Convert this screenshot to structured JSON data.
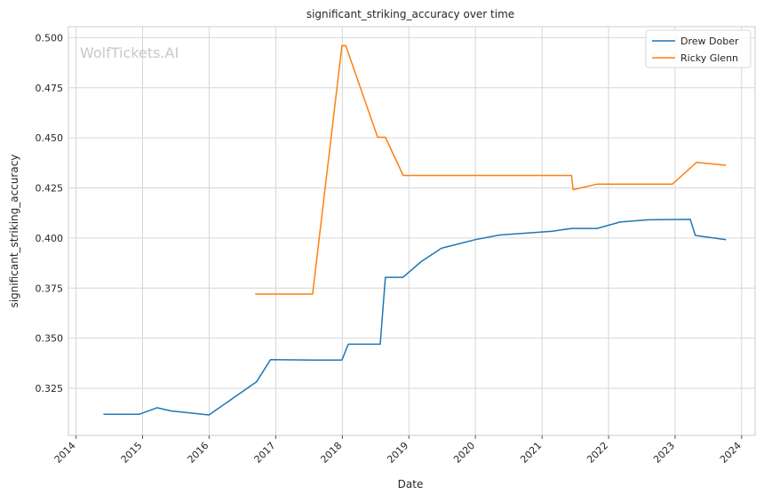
{
  "watermark": "WolfTickets.AI",
  "chart_data": {
    "type": "line",
    "title": "significant_striking_accuracy over time",
    "xlabel": "Date",
    "ylabel": "significant_striking_accuracy",
    "xlim": [
      "2013-11-20",
      "2024-03-15"
    ],
    "ylim": [
      0.3015,
      0.5055
    ],
    "x_ticks": [
      "2014",
      "2015",
      "2016",
      "2017",
      "2018",
      "2019",
      "2020",
      "2021",
      "2022",
      "2023",
      "2024"
    ],
    "y_ticks": [
      "0.325",
      "0.350",
      "0.375",
      "0.400",
      "0.425",
      "0.450",
      "0.475",
      "0.500"
    ],
    "grid": true,
    "legend_position": "top-right",
    "series": [
      {
        "name": "Drew Dober",
        "color": "#1f77b4",
        "x": [
          "2014-05-31",
          "2014-12-13",
          "2015-03-21",
          "2015-06-06",
          "2015-12-31",
          "2016-09-17",
          "2016-12-03",
          "2017-07-22",
          "2017-12-30",
          "2018-02-03",
          "2018-07-28",
          "2018-08-25",
          "2018-11-30",
          "2019-03-09",
          "2019-06-29",
          "2020-01-01",
          "2020-05-13",
          "2021-02-27",
          "2021-06-12",
          "2021-10-30",
          "2022-03-05",
          "2022-08-06",
          "2023-03-25",
          "2023-04-22",
          "2023-10-07"
        ],
        "y": [
          0.312,
          0.312,
          0.3153,
          0.3137,
          0.3117,
          0.3282,
          0.3393,
          0.3391,
          0.3391,
          0.347,
          0.347,
          0.3804,
          0.3804,
          0.3882,
          0.3949,
          0.3992,
          0.4015,
          0.4034,
          0.4048,
          0.4048,
          0.408,
          0.4091,
          0.4093,
          0.4013,
          0.3992
        ]
      },
      {
        "name": "Ricky Glenn",
        "color": "#ff7f0e",
        "x": [
          "2016-09-10",
          "2017-07-22",
          "2017-12-30",
          "2018-01-20",
          "2018-07-14",
          "2018-08-25",
          "2018-12-01",
          "2019-07-01",
          "2020-07-01",
          "2021-06-12",
          "2021-06-20",
          "2021-10-30",
          "2022-06-01",
          "2022-12-17",
          "2023-04-29",
          "2023-10-07"
        ],
        "y": [
          0.372,
          0.372,
          0.496,
          0.496,
          0.4503,
          0.4503,
          0.4312,
          0.4312,
          0.4312,
          0.4312,
          0.4241,
          0.4269,
          0.4269,
          0.4269,
          0.4378,
          0.4363
        ]
      }
    ]
  }
}
